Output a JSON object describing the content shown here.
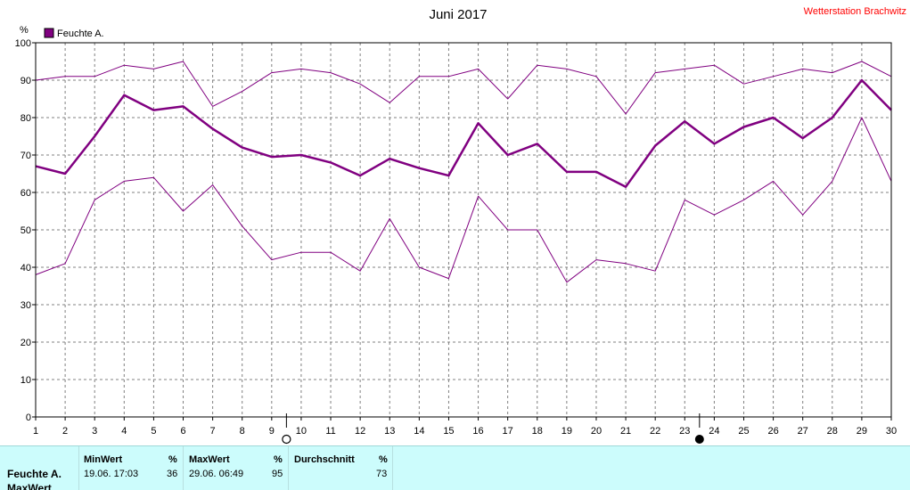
{
  "chart_data": {
    "type": "line",
    "title": "Juni 2017",
    "station": "Wetterstation Brachwitz",
    "ylabel": "%",
    "ylim": [
      0,
      100
    ],
    "yticks": [
      0,
      10,
      20,
      30,
      40,
      50,
      60,
      70,
      80,
      90,
      100
    ],
    "x": [
      1,
      2,
      3,
      4,
      5,
      6,
      7,
      8,
      9,
      10,
      11,
      12,
      13,
      14,
      15,
      16,
      17,
      18,
      19,
      20,
      21,
      22,
      23,
      24,
      25,
      26,
      27,
      28,
      29,
      30
    ],
    "legend": "Feuchte A.",
    "grid": true,
    "colors": {
      "series": "#800080",
      "grid": "#808080",
      "station": "#ff0000"
    },
    "series": [
      {
        "role": "max",
        "values": [
          90,
          91,
          91,
          94,
          93,
          95,
          83,
          87,
          92,
          93,
          92,
          89,
          84,
          91,
          91,
          93,
          85,
          94,
          93,
          91,
          81,
          92,
          93,
          94,
          89,
          91,
          93,
          92,
          95,
          91
        ]
      },
      {
        "role": "avg",
        "values": [
          67,
          65,
          75,
          86,
          82,
          83,
          77,
          72,
          69.5,
          70,
          68,
          64.5,
          69,
          66.5,
          64.5,
          78.5,
          70,
          73,
          65.5,
          65.5,
          61.5,
          72.5,
          79,
          73,
          77.5,
          80,
          74.5,
          80,
          90,
          82
        ]
      },
      {
        "role": "min",
        "values": [
          38,
          41,
          58,
          63,
          64,
          55,
          62,
          51,
          42,
          44,
          44,
          39,
          53,
          40,
          37,
          59,
          50,
          50,
          36,
          42,
          41,
          39,
          58,
          54,
          58,
          63,
          54,
          63,
          80,
          63
        ]
      }
    ],
    "markers": [
      {
        "x": 10,
        "icon": "open-circle-icon"
      },
      {
        "x": 24,
        "icon": "filled-circle-icon"
      }
    ]
  },
  "summary": {
    "row_label_1": "Feuchte A.",
    "row_label_2": "MaxWert",
    "min_header": "MinWert",
    "min_unit": "%",
    "min_time": "19.06.  17:03",
    "min_value": "36",
    "max_header": "MaxWert",
    "max_unit": "%",
    "max_time": "29.06.  06:49",
    "max_value": "95",
    "avg_header": "Durchschnitt",
    "avg_unit": "%",
    "avg_value": "73"
  }
}
